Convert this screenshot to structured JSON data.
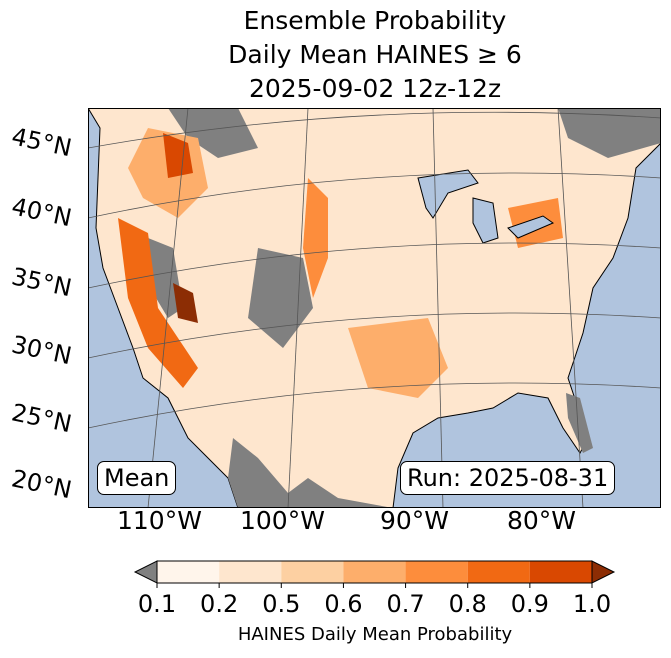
{
  "title": {
    "line1": "Ensemble Probability",
    "line2": "Daily Mean HAINES ≥ 6",
    "line3": "2025-09-02 12z-12z"
  },
  "map": {
    "lat_labels": [
      "45°N",
      "40°N",
      "35°N",
      "30°N",
      "25°N",
      "20°N"
    ],
    "lon_labels": [
      "110°W",
      "100°W",
      "90°W",
      "80°W"
    ],
    "mean_label": "Mean",
    "run_label": "Run: 2025-08-31",
    "colors": {
      "ocean": "#b0c4de",
      "lakes": "#b0c4de",
      "nodata": "#808080"
    }
  },
  "colorbar": {
    "label": "HAINES Daily Mean Probability",
    "ticks": [
      "0.1",
      "0.2",
      "0.5",
      "0.6",
      "0.7",
      "0.8",
      "0.9",
      "1.0"
    ],
    "colors": [
      "#fff5eb",
      "#fee6ce",
      "#fdd0a2",
      "#fdae6b",
      "#fd8d3c",
      "#f16913",
      "#d94801"
    ],
    "under_color": "#808080",
    "over_color": "#8c2d04"
  }
}
